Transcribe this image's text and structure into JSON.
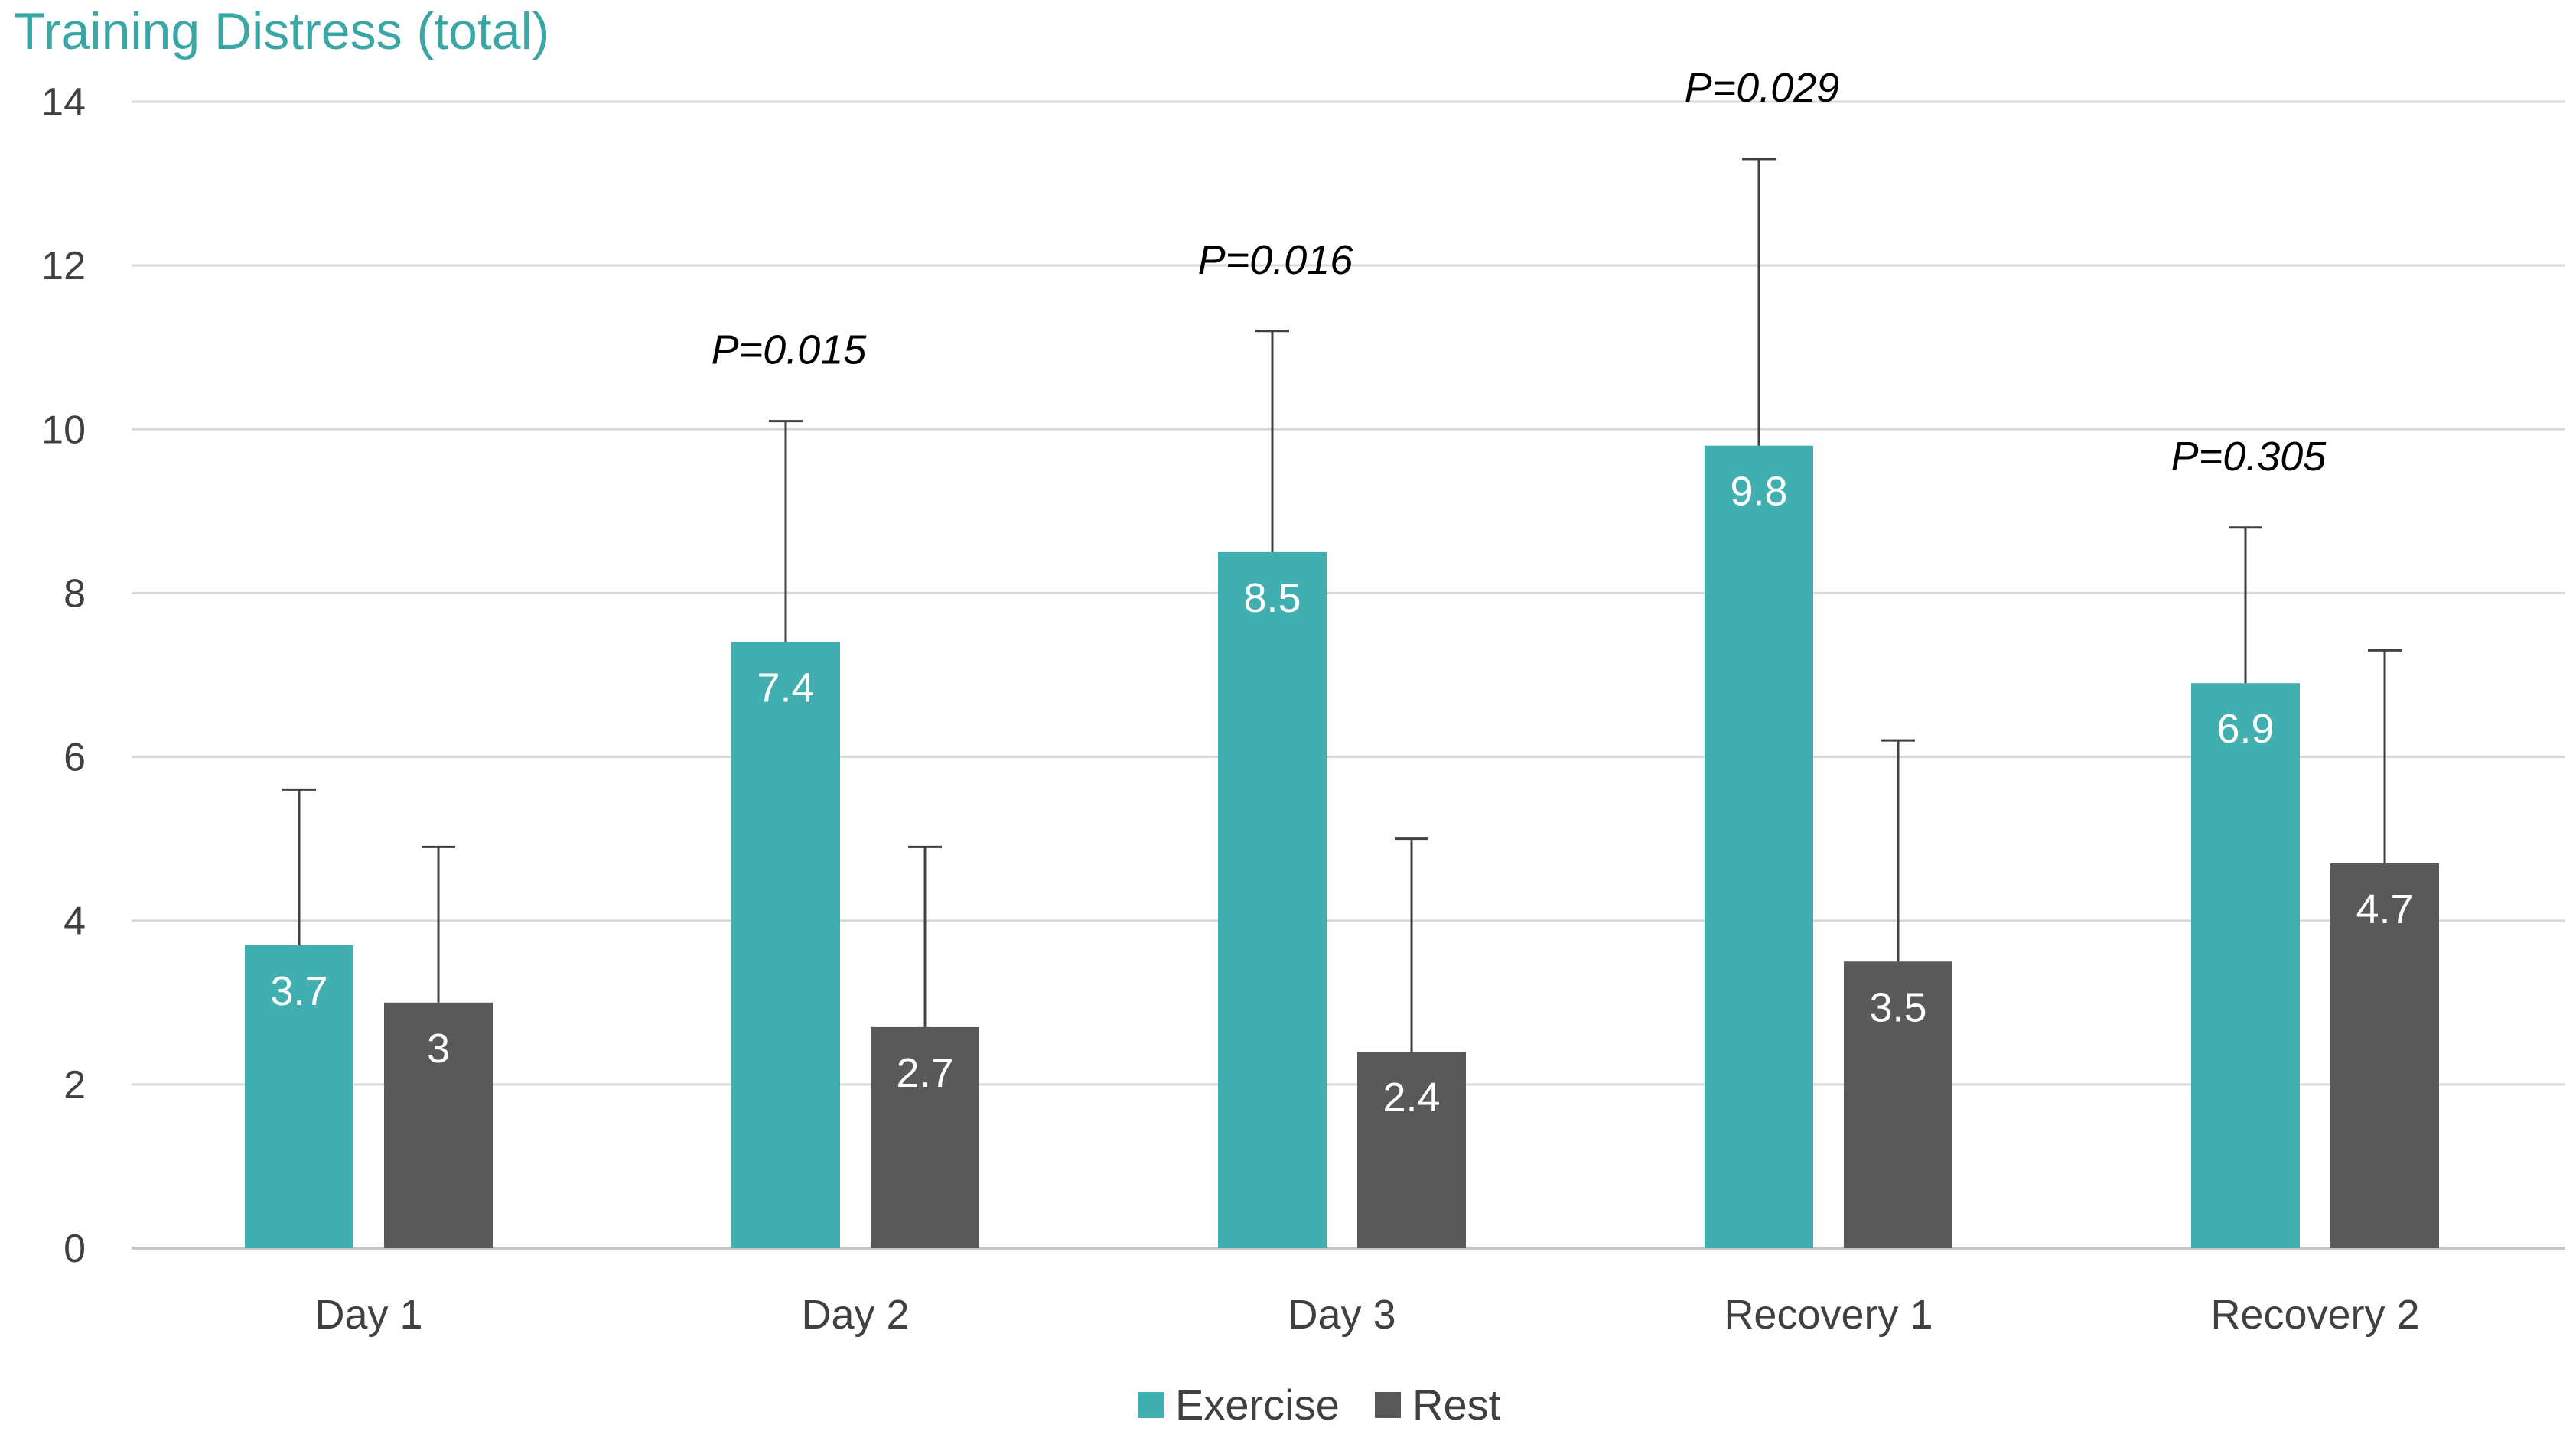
{
  "chart_data": {
    "type": "bar",
    "title": "Training Distress (total)",
    "xlabel": "",
    "ylabel": "",
    "ylim": [
      0,
      14
    ],
    "yticks": [
      0,
      2,
      4,
      6,
      8,
      10,
      12,
      14
    ],
    "grid": true,
    "legend_position": "bottom-center",
    "categories": [
      "Day 1",
      "Day 2",
      "Day 3",
      "Recovery 1",
      "Recovery 2"
    ],
    "series": [
      {
        "name": "Exercise",
        "color": "#41afb0",
        "values": [
          3.7,
          7.4,
          8.5,
          9.8,
          6.9
        ],
        "error_upper": [
          5.6,
          10.1,
          11.2,
          13.3,
          8.8
        ],
        "labels": [
          "3.7",
          "7.4",
          "8.5",
          "9.8",
          "6.9"
        ]
      },
      {
        "name": "Rest",
        "color": "#595959",
        "values": [
          3.0,
          2.7,
          2.4,
          3.5,
          4.7
        ],
        "error_upper": [
          4.9,
          4.9,
          5.0,
          6.2,
          7.3
        ],
        "labels": [
          "3",
          "2.7",
          "2.4",
          "3.5",
          "4.7"
        ]
      }
    ],
    "annotations": [
      {
        "category": "Day 2",
        "text": "P=0.015"
      },
      {
        "category": "Day 3",
        "text": "P=0.016"
      },
      {
        "category": "Recovery 1",
        "text": "P=0.029"
      },
      {
        "category": "Recovery 2",
        "text": "P=0.305"
      }
    ]
  }
}
